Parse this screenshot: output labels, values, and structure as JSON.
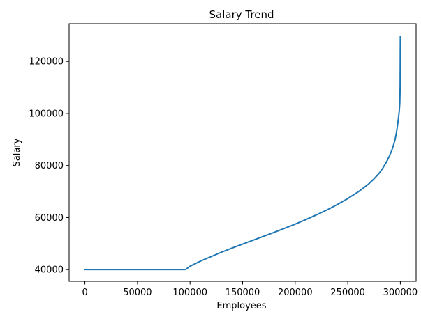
{
  "chart_data": {
    "type": "line",
    "title": "Salary Trend",
    "xlabel": "Employees",
    "ylabel": "Salary",
    "xlim": [
      -15000,
      315000
    ],
    "ylim": [
      35500,
      134500
    ],
    "grid": false,
    "x_ticks": [
      {
        "value": 0,
        "label": "0"
      },
      {
        "value": 50000,
        "label": "50000"
      },
      {
        "value": 100000,
        "label": "100000"
      },
      {
        "value": 150000,
        "label": "150000"
      },
      {
        "value": 200000,
        "label": "200000"
      },
      {
        "value": 250000,
        "label": "250000"
      },
      {
        "value": 300000,
        "label": "300000"
      }
    ],
    "y_ticks": [
      {
        "value": 40000,
        "label": "40000"
      },
      {
        "value": 60000,
        "label": "60000"
      },
      {
        "value": 80000,
        "label": "80000"
      },
      {
        "value": 100000,
        "label": "100000"
      },
      {
        "value": 120000,
        "label": "120000"
      }
    ],
    "series": [
      {
        "color": "#1f77b4",
        "x": [
          0,
          50000,
          95000,
          96000,
          100000,
          110000,
          120000,
          130000,
          140000,
          150000,
          160000,
          170000,
          180000,
          190000,
          200000,
          210000,
          220000,
          230000,
          240000,
          250000,
          260000,
          265000,
          270000,
          275000,
          280000,
          283000,
          286000,
          288000,
          290000,
          292000,
          294000,
          295000,
          296000,
          297000,
          298000,
          299000,
          299500,
          299800,
          300000
        ],
        "y": [
          40000,
          40000,
          40000,
          40100,
          41300,
          43300,
          45000,
          46700,
          48300,
          49800,
          51300,
          52800,
          54300,
          55900,
          57500,
          59200,
          61000,
          62900,
          65000,
          67300,
          69900,
          71400,
          73000,
          74900,
          77100,
          78800,
          80800,
          82300,
          84000,
          86000,
          88500,
          90000,
          92000,
          94500,
          97500,
          101000,
          104000,
          110000,
          129500
        ]
      }
    ]
  }
}
